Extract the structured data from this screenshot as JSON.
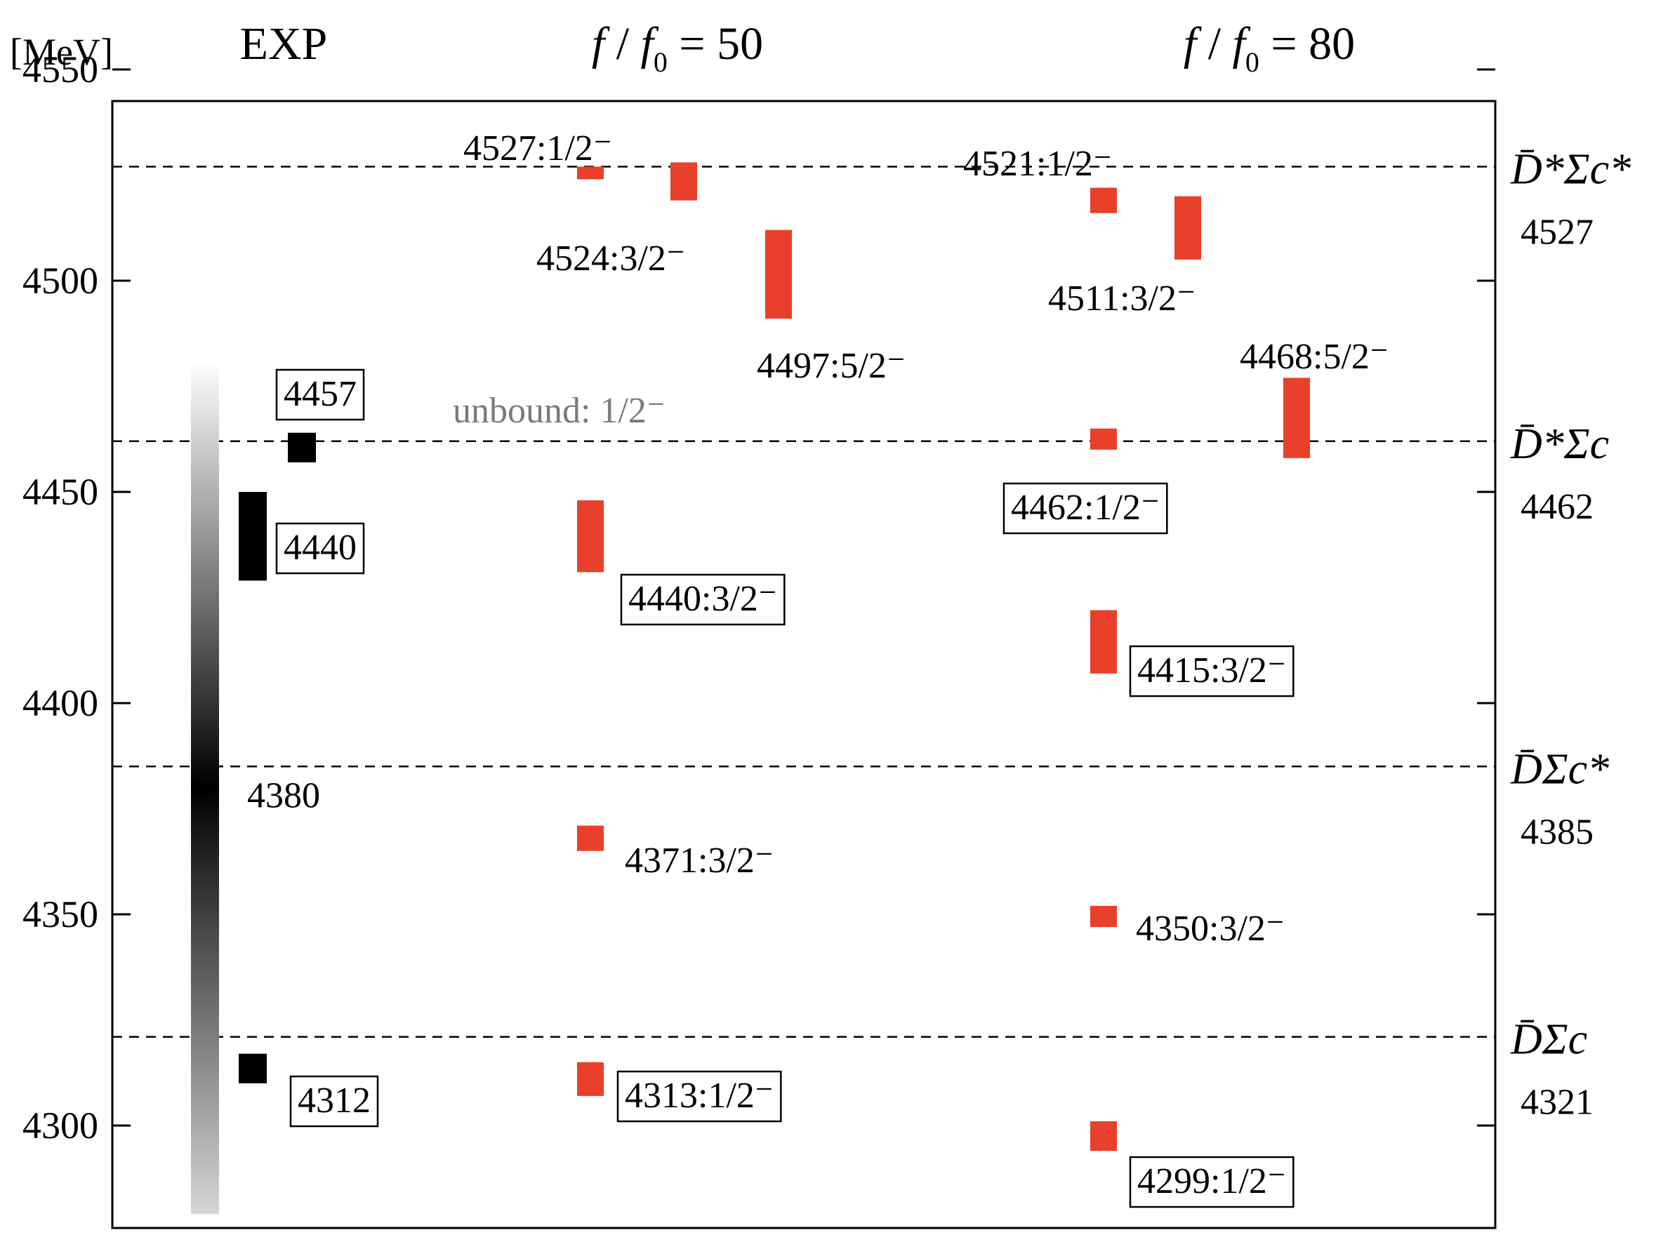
{
  "chart_data": {
    "type": "level-diagram",
    "y_unit": "[MeV]",
    "ylim": [
      4273,
      4562
    ],
    "y_ticks": [
      4300,
      4350,
      4400,
      4450,
      4500,
      4550
    ],
    "columns": [
      {
        "key": "exp",
        "label": "EXP"
      },
      {
        "key": "f50",
        "label_parts": [
          "f",
          " / ",
          "f",
          "0",
          " = 50"
        ]
      },
      {
        "key": "f80",
        "label_parts": [
          "f",
          " / ",
          "f",
          "0",
          " = 80"
        ]
      }
    ],
    "thresholds": [
      {
        "value": 4527,
        "name": "D̄*Σc*",
        "label": "4527"
      },
      {
        "value": 4462,
        "name": "D̄*Σc",
        "label": "4462"
      },
      {
        "value": 4385,
        "name": "D̄Σc*",
        "label": "4385"
      },
      {
        "value": 4321,
        "name": "D̄Σc",
        "label": "4321"
      }
    ],
    "exp": {
      "broad_state": {
        "label": "4380",
        "center": 4380,
        "low": 4279,
        "high": 4481
      },
      "states": [
        {
          "label": "4457",
          "low": 4457,
          "high": 4464,
          "boxed": true
        },
        {
          "label": "4440",
          "low": 4429,
          "high": 4450,
          "boxed": true
        },
        {
          "label": "4312",
          "low": 4310,
          "high": 4317,
          "boxed": true
        }
      ]
    },
    "series": [
      {
        "name": "f/f0 = 50",
        "color": "#e8402a",
        "states": [
          {
            "label": "4527:1/2⁻",
            "low": 4524,
            "high": 4527,
            "jp": "1/2⁻",
            "boxed": false
          },
          {
            "label": "4524:3/2⁻",
            "low": 4519,
            "high": 4528,
            "jp": "3/2⁻",
            "boxed": false
          },
          {
            "label": "4497:5/2⁻",
            "low": 4491,
            "high": 4512,
            "jp": "5/2⁻",
            "boxed": false
          },
          {
            "label": "4440:3/2⁻",
            "low": 4431,
            "high": 4448,
            "jp": "3/2⁻",
            "boxed": true
          },
          {
            "label": "4371:3/2⁻",
            "low": 4365,
            "high": 4371,
            "jp": "3/2⁻",
            "boxed": false
          },
          {
            "label": "4313:1/2⁻",
            "low": 4307,
            "high": 4315,
            "jp": "1/2⁻",
            "boxed": true
          }
        ]
      },
      {
        "name": "f/f0 = 80",
        "color": "#e8402a",
        "states": [
          {
            "label": "4521:1/2⁻",
            "low": 4516,
            "high": 4522,
            "jp": "1/2⁻",
            "boxed": false
          },
          {
            "label": "4511:3/2⁻",
            "low": 4505,
            "high": 4520,
            "jp": "3/2⁻",
            "boxed": false
          },
          {
            "label": "4468:5/2⁻",
            "low": 4458,
            "high": 4477,
            "jp": "5/2⁻",
            "boxed": false
          },
          {
            "label": "4462:1/2⁻",
            "low": 4460,
            "high": 4465,
            "jp": "1/2⁻",
            "boxed": true
          },
          {
            "label": "4415:3/2⁻",
            "low": 4407,
            "high": 4422,
            "jp": "3/2⁻",
            "boxed": true
          },
          {
            "label": "4350:3/2⁻",
            "low": 4347,
            "high": 4352,
            "jp": "3/2⁻",
            "boxed": false
          },
          {
            "label": "4299:1/2⁻",
            "low": 4294,
            "high": 4301,
            "jp": "1/2⁻",
            "boxed": true
          }
        ]
      }
    ],
    "annotation": "unbound: 1/2⁻"
  }
}
